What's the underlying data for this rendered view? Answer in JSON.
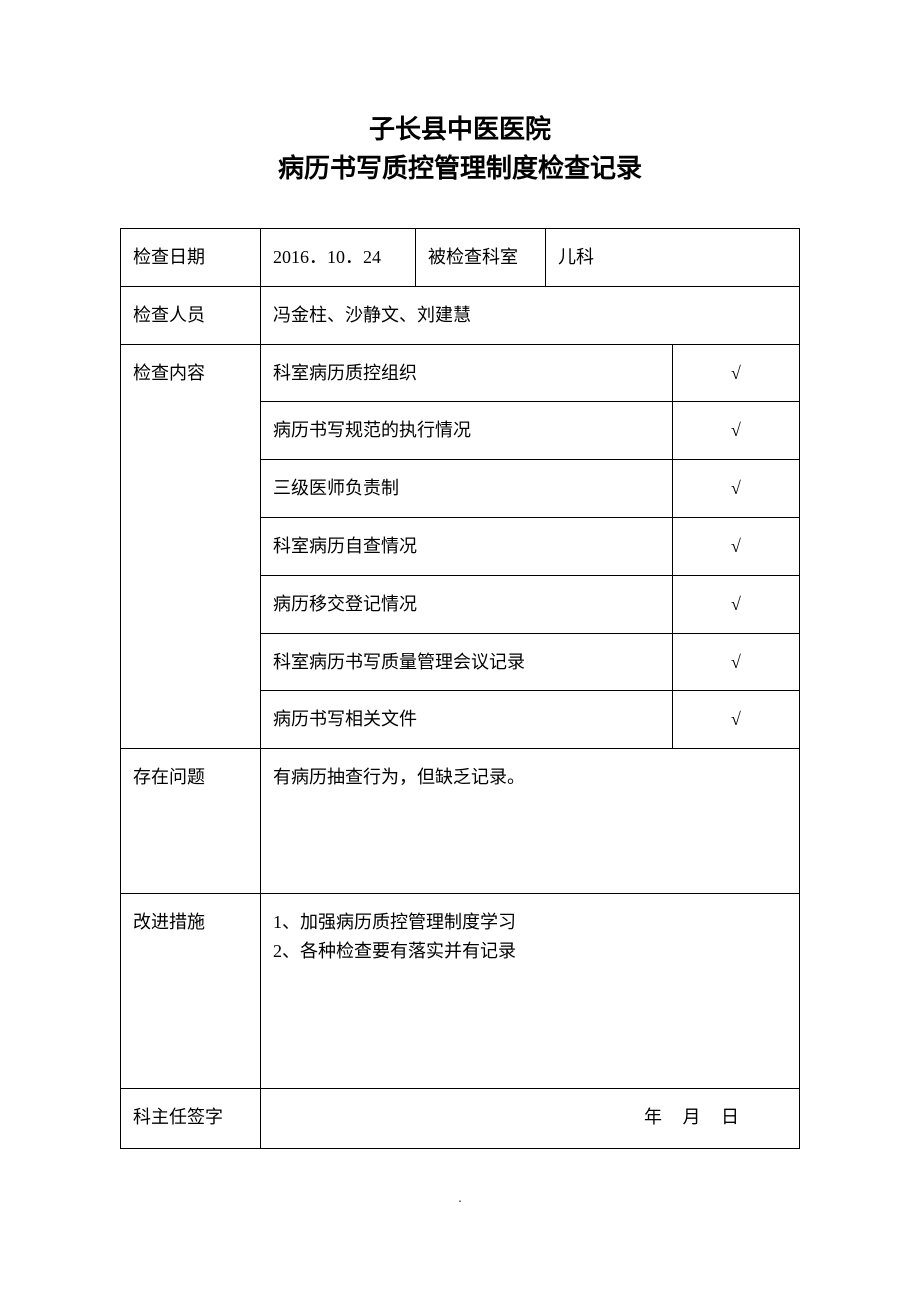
{
  "title": {
    "line1": "子长县中医医院",
    "line2": "病历书写质控管理制度检查记录"
  },
  "labels": {
    "inspect_date": "检查日期",
    "inspected_dept": "被检查科室",
    "inspectors": "检查人员",
    "inspect_content": "检查内容",
    "issues": "存在问题",
    "improvements": "改进措施",
    "director_sign": "科主任签字"
  },
  "values": {
    "inspect_date": "2016．10．24",
    "inspected_dept": "儿科",
    "inspectors": "冯金柱、沙静文、刘建慧",
    "issues": "有病历抽查行为，但缺乏记录。",
    "improvement_1": "1、加强病历质控管理制度学习",
    "improvement_2": "2、各种检查要有落实并有记录",
    "sign_date_placeholder": "年  月  日"
  },
  "check_items": [
    {
      "label": "科室病历质控组织",
      "mark": "√"
    },
    {
      "label": "病历书写规范的执行情况",
      "mark": "√"
    },
    {
      "label": "三级医师负责制",
      "mark": "√"
    },
    {
      "label": "科室病历自查情况",
      "mark": "√"
    },
    {
      "label": "病历移交登记情况",
      "mark": "√"
    },
    {
      "label": "科室病历书写质量管理会议记录",
      "mark": "√"
    },
    {
      "label": "病历书写相关文件",
      "mark": "√"
    }
  ],
  "footer_mark": "."
}
